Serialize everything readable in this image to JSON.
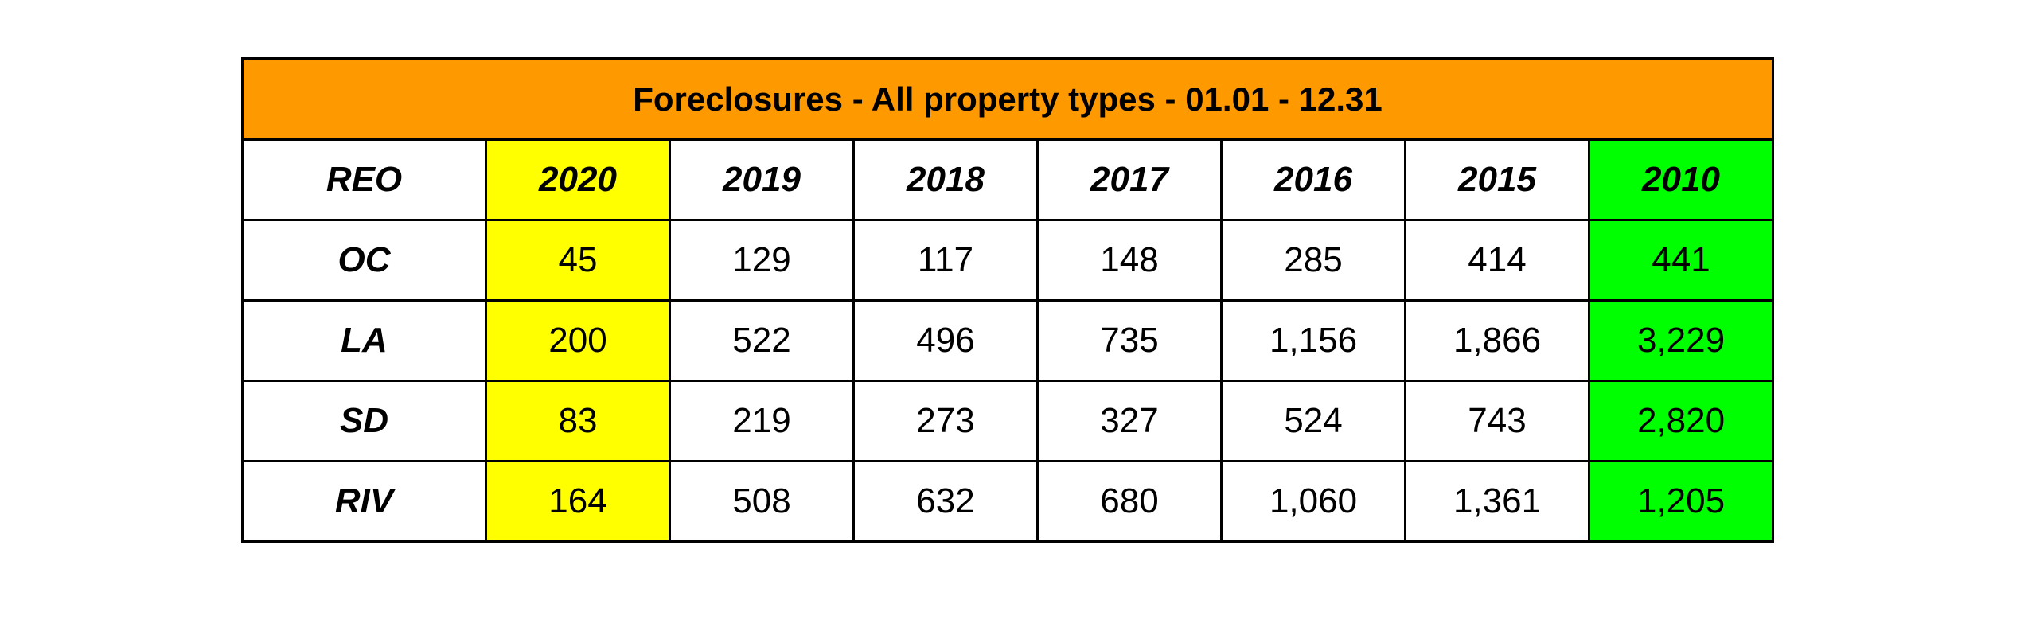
{
  "colors": {
    "title_bg": "#ff9900",
    "highlight_2020": "#ffff00",
    "highlight_2010": "#00ff00",
    "border": "#000000"
  },
  "chart_data": {
    "type": "table",
    "title": "Foreclosures - All property types - 01.01 - 12.31",
    "corner_label": "REO",
    "columns": [
      "2020",
      "2019",
      "2018",
      "2017",
      "2016",
      "2015",
      "2010"
    ],
    "highlight_columns": {
      "2020": "#ffff00",
      "2010": "#00ff00"
    },
    "rows": [
      {
        "label": "OC",
        "values": [
          "45",
          "129",
          "117",
          "148",
          "285",
          "414",
          "441"
        ]
      },
      {
        "label": "LA",
        "values": [
          "200",
          "522",
          "496",
          "735",
          "1,156",
          "1,866",
          "3,229"
        ]
      },
      {
        "label": "SD",
        "values": [
          "83",
          "219",
          "273",
          "327",
          "524",
          "743",
          "2,820"
        ]
      },
      {
        "label": "RIV",
        "values": [
          "164",
          "508",
          "632",
          "680",
          "1,060",
          "1,361",
          "1,205"
        ]
      }
    ]
  }
}
